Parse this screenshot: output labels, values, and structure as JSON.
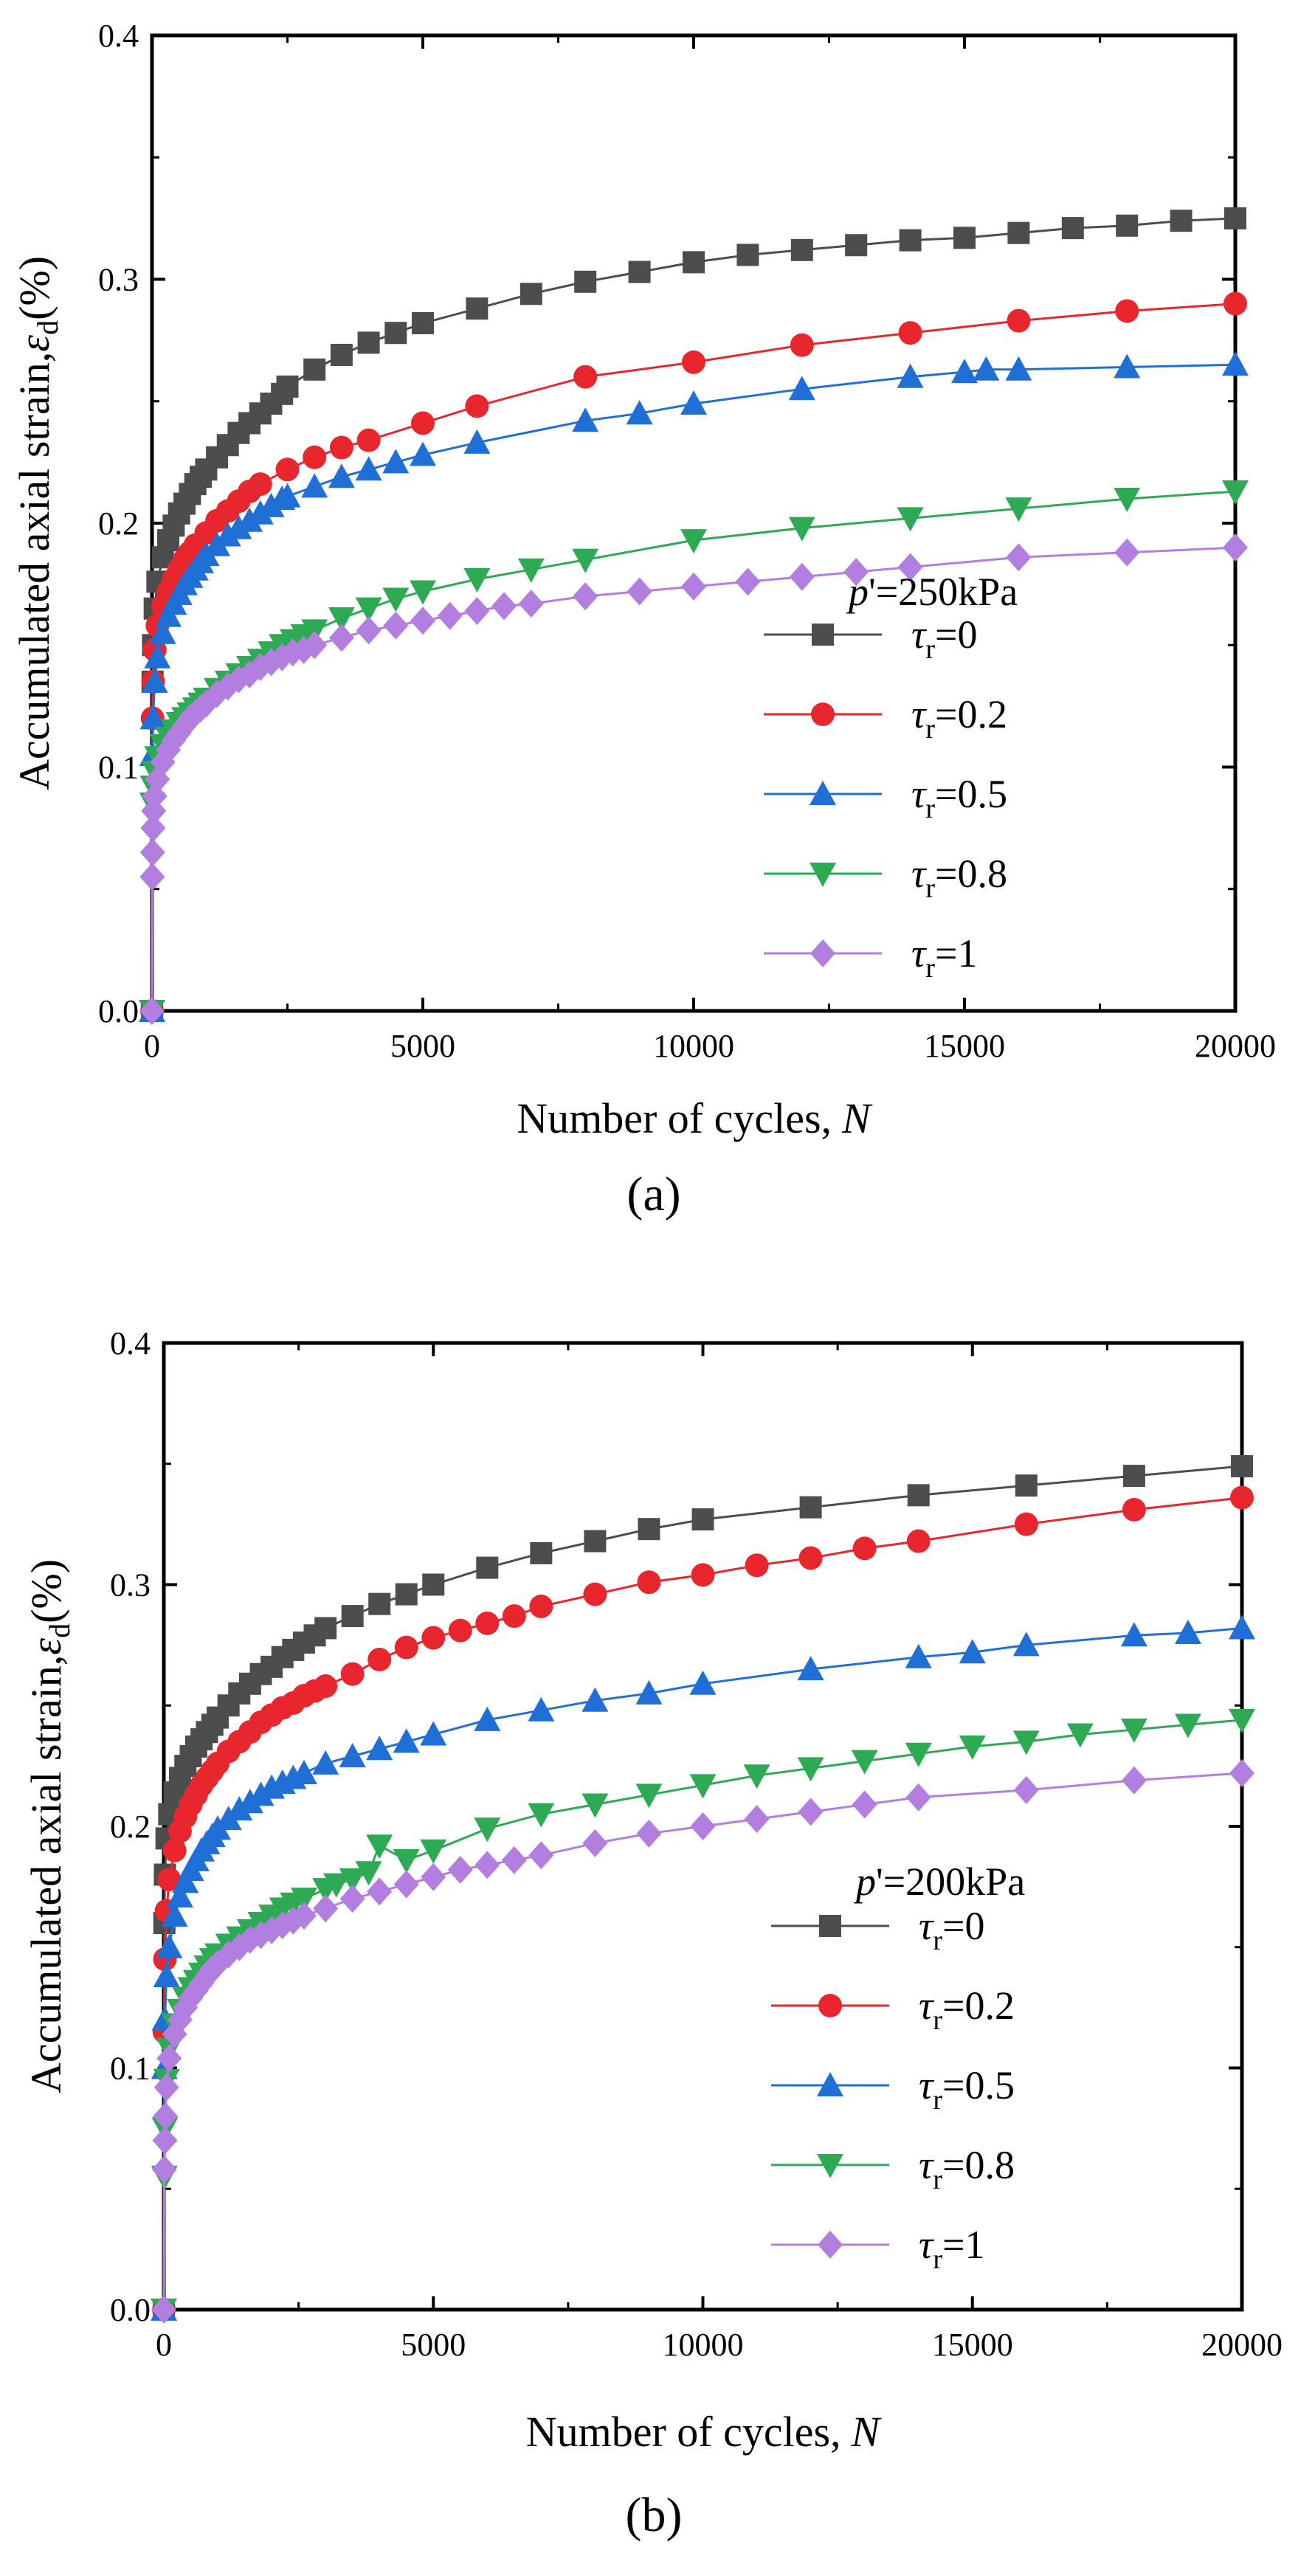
{
  "chart_data": [
    {
      "type": "line",
      "caption": "(a)",
      "legend_title": "p'=250kPa",
      "xlabel": "Number of cycles,",
      "xlabel_var": "N",
      "ylabel": "Accumulated axial strain,",
      "ylabel_symbol": "ε",
      "ylabel_sub": "d",
      "ylabel_unit": "(%)",
      "xlim": [
        0,
        20000
      ],
      "ylim": [
        0,
        0.4
      ],
      "xticks": [
        0,
        5000,
        10000,
        15000,
        20000
      ],
      "xtick_labels": [
        "0",
        "5000",
        "10000",
        "15000",
        "20000"
      ],
      "yticks": [
        0,
        0.1,
        0.2,
        0.3,
        0.4
      ],
      "ytick_labels": [
        "0.0",
        "0.1",
        "0.2",
        "0.3",
        "0.4"
      ],
      "legend_position": "right-middle",
      "series": [
        {
          "name": "τr=0",
          "label_main": "τ",
          "label_sub": "r",
          "label_val": "=0",
          "color": "#4d4d4d",
          "marker": "square",
          "x": [
            0,
            10,
            20,
            50,
            100,
            200,
            300,
            400,
            500,
            600,
            700,
            800,
            900,
            1000,
            1200,
            1400,
            1600,
            1800,
            2000,
            2200,
            2400,
            2500,
            3000,
            3500,
            4000,
            4500,
            5000,
            6000,
            7000,
            8000,
            9000,
            10000,
            11000,
            12000,
            13000,
            14000,
            15000,
            16000,
            17000,
            18000,
            19000,
            20000
          ],
          "y": [
            0.0,
            0.135,
            0.15,
            0.165,
            0.176,
            0.186,
            0.193,
            0.199,
            0.204,
            0.208,
            0.212,
            0.216,
            0.219,
            0.222,
            0.227,
            0.232,
            0.237,
            0.241,
            0.245,
            0.249,
            0.253,
            0.256,
            0.263,
            0.269,
            0.274,
            0.278,
            0.282,
            0.288,
            0.294,
            0.299,
            0.303,
            0.307,
            0.31,
            0.312,
            0.314,
            0.316,
            0.317,
            0.319,
            0.321,
            0.322,
            0.324,
            0.325
          ]
        },
        {
          "name": "τr=0.2",
          "label_main": "τ",
          "label_sub": "r",
          "label_val": "=0.2",
          "color": "#e8262d",
          "marker": "circle",
          "x": [
            0,
            10,
            20,
            50,
            100,
            200,
            300,
            400,
            500,
            600,
            700,
            800,
            1000,
            1200,
            1400,
            1600,
            1800,
            2000,
            2500,
            3000,
            3500,
            4000,
            5000,
            6000,
            8000,
            10000,
            12000,
            14000,
            16000,
            18000,
            20000
          ],
          "y": [
            0.0,
            0.12,
            0.135,
            0.148,
            0.158,
            0.166,
            0.172,
            0.177,
            0.181,
            0.185,
            0.188,
            0.191,
            0.196,
            0.201,
            0.205,
            0.209,
            0.213,
            0.216,
            0.222,
            0.227,
            0.231,
            0.234,
            0.241,
            0.248,
            0.26,
            0.266,
            0.273,
            0.278,
            0.283,
            0.287,
            0.29
          ]
        },
        {
          "name": "τr=0.5",
          "label_main": "τ",
          "label_sub": "r",
          "label_val": "=0.5",
          "color": "#1f6fd6",
          "marker": "triangle",
          "x": [
            0,
            10,
            20,
            50,
            100,
            200,
            300,
            400,
            500,
            600,
            700,
            800,
            900,
            1000,
            1200,
            1400,
            1600,
            1800,
            2000,
            2200,
            2400,
            2500,
            3000,
            3500,
            4000,
            4500,
            5000,
            6000,
            8000,
            9000,
            10000,
            12000,
            14000,
            15000,
            15400,
            16000,
            18000,
            20000
          ],
          "y": [
            0.0,
            0.105,
            0.12,
            0.135,
            0.145,
            0.155,
            0.162,
            0.167,
            0.171,
            0.175,
            0.178,
            0.181,
            0.184,
            0.187,
            0.191,
            0.195,
            0.198,
            0.201,
            0.204,
            0.207,
            0.21,
            0.211,
            0.215,
            0.219,
            0.222,
            0.225,
            0.228,
            0.233,
            0.242,
            0.245,
            0.249,
            0.255,
            0.26,
            0.262,
            0.263,
            0.263,
            0.264,
            0.265
          ]
        },
        {
          "name": "τr=0.8",
          "label_main": "τ",
          "label_sub": "r",
          "label_val": "=0.8",
          "color": "#2eaa55",
          "marker": "triangle-down",
          "x": [
            0,
            10,
            20,
            50,
            100,
            200,
            300,
            400,
            500,
            600,
            700,
            800,
            900,
            1000,
            1200,
            1400,
            1600,
            1800,
            2000,
            2200,
            2400,
            2600,
            2800,
            3000,
            3500,
            4000,
            4500,
            5000,
            6000,
            7000,
            8000,
            10000,
            12000,
            14000,
            16000,
            18000,
            20000
          ],
          "y": [
            0.0,
            0.085,
            0.092,
            0.098,
            0.104,
            0.109,
            0.112,
            0.115,
            0.118,
            0.12,
            0.122,
            0.124,
            0.126,
            0.128,
            0.132,
            0.135,
            0.138,
            0.141,
            0.144,
            0.147,
            0.15,
            0.152,
            0.154,
            0.156,
            0.161,
            0.165,
            0.169,
            0.172,
            0.177,
            0.181,
            0.185,
            0.193,
            0.198,
            0.202,
            0.206,
            0.21,
            0.213
          ]
        },
        {
          "name": "τr=1",
          "label_main": "τ",
          "label_sub": "r",
          "label_val": "=1",
          "color": "#b27ee0",
          "marker": "diamond",
          "x": [
            0,
            5,
            10,
            20,
            30,
            50,
            100,
            200,
            300,
            400,
            500,
            600,
            700,
            800,
            900,
            1000,
            1200,
            1400,
            1600,
            1800,
            2000,
            2200,
            2400,
            2600,
            2800,
            3000,
            3500,
            4000,
            4500,
            5000,
            5500,
            6000,
            6500,
            7000,
            8000,
            9000,
            10000,
            11000,
            12000,
            13000,
            14000,
            16000,
            18000,
            20000
          ],
          "y": [
            0.0,
            0.055,
            0.065,
            0.075,
            0.082,
            0.088,
            0.095,
            0.102,
            0.107,
            0.111,
            0.114,
            0.117,
            0.12,
            0.122,
            0.124,
            0.126,
            0.13,
            0.133,
            0.136,
            0.138,
            0.141,
            0.143,
            0.145,
            0.147,
            0.148,
            0.15,
            0.153,
            0.156,
            0.158,
            0.16,
            0.162,
            0.164,
            0.166,
            0.167,
            0.17,
            0.172,
            0.174,
            0.176,
            0.178,
            0.18,
            0.182,
            0.186,
            0.188,
            0.19
          ]
        }
      ]
    },
    {
      "type": "line",
      "caption": "(b)",
      "legend_title": "p'=200kPa",
      "xlabel": "Number of cycles,",
      "xlabel_var": "N",
      "ylabel": "Accumulated  axial strain,",
      "ylabel_symbol": "ε",
      "ylabel_sub": "d",
      "ylabel_unit": "(%)",
      "xlim": [
        0,
        20000
      ],
      "ylim": [
        0,
        0.4
      ],
      "xticks": [
        0,
        5000,
        10000,
        15000,
        20000
      ],
      "xtick_labels": [
        "0",
        "5000",
        "10000",
        "15000",
        "20000"
      ],
      "yticks": [
        0,
        0.1,
        0.2,
        0.3,
        0.4
      ],
      "ytick_labels": [
        "0.0",
        "0.1",
        "0.2",
        "0.3",
        "0.4"
      ],
      "legend_position": "right-middle",
      "series": [
        {
          "name": "τr=0",
          "label_main": "τ",
          "label_sub": "r",
          "label_val": "=0",
          "color": "#4d4d4d",
          "marker": "square",
          "x": [
            0,
            10,
            20,
            50,
            100,
            200,
            300,
            400,
            500,
            600,
            700,
            800,
            900,
            1000,
            1200,
            1400,
            1600,
            1800,
            2000,
            2200,
            2400,
            2600,
            2800,
            3000,
            3500,
            4000,
            4500,
            5000,
            6000,
            7000,
            8000,
            9000,
            10000,
            12000,
            14000,
            16000,
            18000,
            20000
          ],
          "y": [
            0.0,
            0.16,
            0.18,
            0.195,
            0.205,
            0.214,
            0.22,
            0.225,
            0.229,
            0.233,
            0.236,
            0.239,
            0.242,
            0.245,
            0.25,
            0.255,
            0.259,
            0.263,
            0.266,
            0.27,
            0.273,
            0.276,
            0.279,
            0.282,
            0.287,
            0.292,
            0.296,
            0.3,
            0.307,
            0.313,
            0.318,
            0.323,
            0.327,
            0.332,
            0.337,
            0.341,
            0.345,
            0.349
          ]
        },
        {
          "name": "τr=0.2",
          "label_main": "τ",
          "label_sub": "r",
          "label_val": "=0.2",
          "color": "#e8262d",
          "marker": "circle",
          "x": [
            0,
            10,
            20,
            50,
            100,
            200,
            300,
            400,
            500,
            600,
            700,
            800,
            900,
            1000,
            1200,
            1400,
            1600,
            1800,
            2000,
            2200,
            2400,
            2600,
            2800,
            3000,
            3500,
            4000,
            4500,
            5000,
            5500,
            6000,
            6500,
            7000,
            8000,
            9000,
            10000,
            11000,
            12000,
            13000,
            14000,
            16000,
            18000,
            20000
          ],
          "y": [
            0.0,
            0.115,
            0.145,
            0.165,
            0.178,
            0.19,
            0.198,
            0.204,
            0.209,
            0.213,
            0.217,
            0.22,
            0.223,
            0.226,
            0.231,
            0.235,
            0.239,
            0.243,
            0.246,
            0.249,
            0.251,
            0.254,
            0.256,
            0.258,
            0.263,
            0.269,
            0.274,
            0.278,
            0.281,
            0.284,
            0.287,
            0.291,
            0.296,
            0.301,
            0.304,
            0.308,
            0.311,
            0.315,
            0.318,
            0.325,
            0.331,
            0.336
          ]
        },
        {
          "name": "τr=0.5",
          "label_main": "τ",
          "label_sub": "r",
          "label_val": "=0.5",
          "color": "#1f6fd6",
          "marker": "triangle",
          "x": [
            0,
            10,
            20,
            50,
            100,
            200,
            300,
            400,
            500,
            600,
            700,
            800,
            900,
            1000,
            1200,
            1400,
            1600,
            1800,
            2000,
            2200,
            2400,
            2600,
            3000,
            3500,
            4000,
            4500,
            5000,
            6000,
            7000,
            8000,
            9000,
            10000,
            12000,
            14000,
            15000,
            16000,
            18000,
            19000,
            20000
          ],
          "y": [
            0.0,
            0.1,
            0.12,
            0.138,
            0.15,
            0.163,
            0.171,
            0.177,
            0.182,
            0.186,
            0.19,
            0.193,
            0.196,
            0.199,
            0.203,
            0.207,
            0.21,
            0.213,
            0.216,
            0.218,
            0.22,
            0.222,
            0.226,
            0.229,
            0.232,
            0.235,
            0.238,
            0.244,
            0.248,
            0.252,
            0.255,
            0.259,
            0.265,
            0.27,
            0.272,
            0.275,
            0.279,
            0.28,
            0.282
          ]
        },
        {
          "name": "τr=0.8",
          "label_main": "τ",
          "label_sub": "r",
          "label_val": "=0.8",
          "color": "#2eaa55",
          "marker": "triangle-down",
          "x": [
            0,
            10,
            20,
            50,
            100,
            200,
            300,
            400,
            500,
            600,
            700,
            800,
            900,
            1000,
            1200,
            1400,
            1600,
            1800,
            2000,
            2200,
            2400,
            2600,
            3000,
            3200,
            3500,
            3800,
            4000,
            4500,
            5000,
            6000,
            7000,
            8000,
            9000,
            10000,
            11000,
            12000,
            13000,
            14000,
            15000,
            16000,
            17000,
            18000,
            19000,
            20000
          ],
          "y": [
            0.0,
            0.055,
            0.075,
            0.095,
            0.108,
            0.118,
            0.124,
            0.129,
            0.133,
            0.136,
            0.139,
            0.142,
            0.145,
            0.147,
            0.151,
            0.154,
            0.157,
            0.16,
            0.163,
            0.166,
            0.168,
            0.17,
            0.174,
            0.176,
            0.178,
            0.181,
            0.192,
            0.186,
            0.19,
            0.199,
            0.205,
            0.209,
            0.213,
            0.217,
            0.221,
            0.224,
            0.227,
            0.23,
            0.233,
            0.235,
            0.238,
            0.24,
            0.242,
            0.244
          ]
        },
        {
          "name": "τr=1",
          "label_main": "τ",
          "label_sub": "r",
          "label_val": "=1",
          "color": "#b27ee0",
          "marker": "diamond",
          "x": [
            0,
            10,
            20,
            30,
            50,
            100,
            200,
            300,
            400,
            500,
            600,
            700,
            800,
            900,
            1000,
            1200,
            1400,
            1600,
            1800,
            2000,
            2200,
            2400,
            2600,
            3000,
            3500,
            4000,
            4500,
            5000,
            5500,
            6000,
            6500,
            7000,
            8000,
            9000,
            10000,
            11000,
            12000,
            13000,
            14000,
            16000,
            18000,
            20000
          ],
          "y": [
            0.0,
            0.058,
            0.07,
            0.08,
            0.092,
            0.104,
            0.114,
            0.12,
            0.125,
            0.129,
            0.132,
            0.135,
            0.138,
            0.141,
            0.143,
            0.147,
            0.15,
            0.153,
            0.155,
            0.157,
            0.159,
            0.161,
            0.163,
            0.166,
            0.17,
            0.173,
            0.176,
            0.179,
            0.182,
            0.184,
            0.186,
            0.188,
            0.193,
            0.197,
            0.2,
            0.203,
            0.206,
            0.209,
            0.212,
            0.215,
            0.219,
            0.222
          ]
        }
      ]
    }
  ]
}
